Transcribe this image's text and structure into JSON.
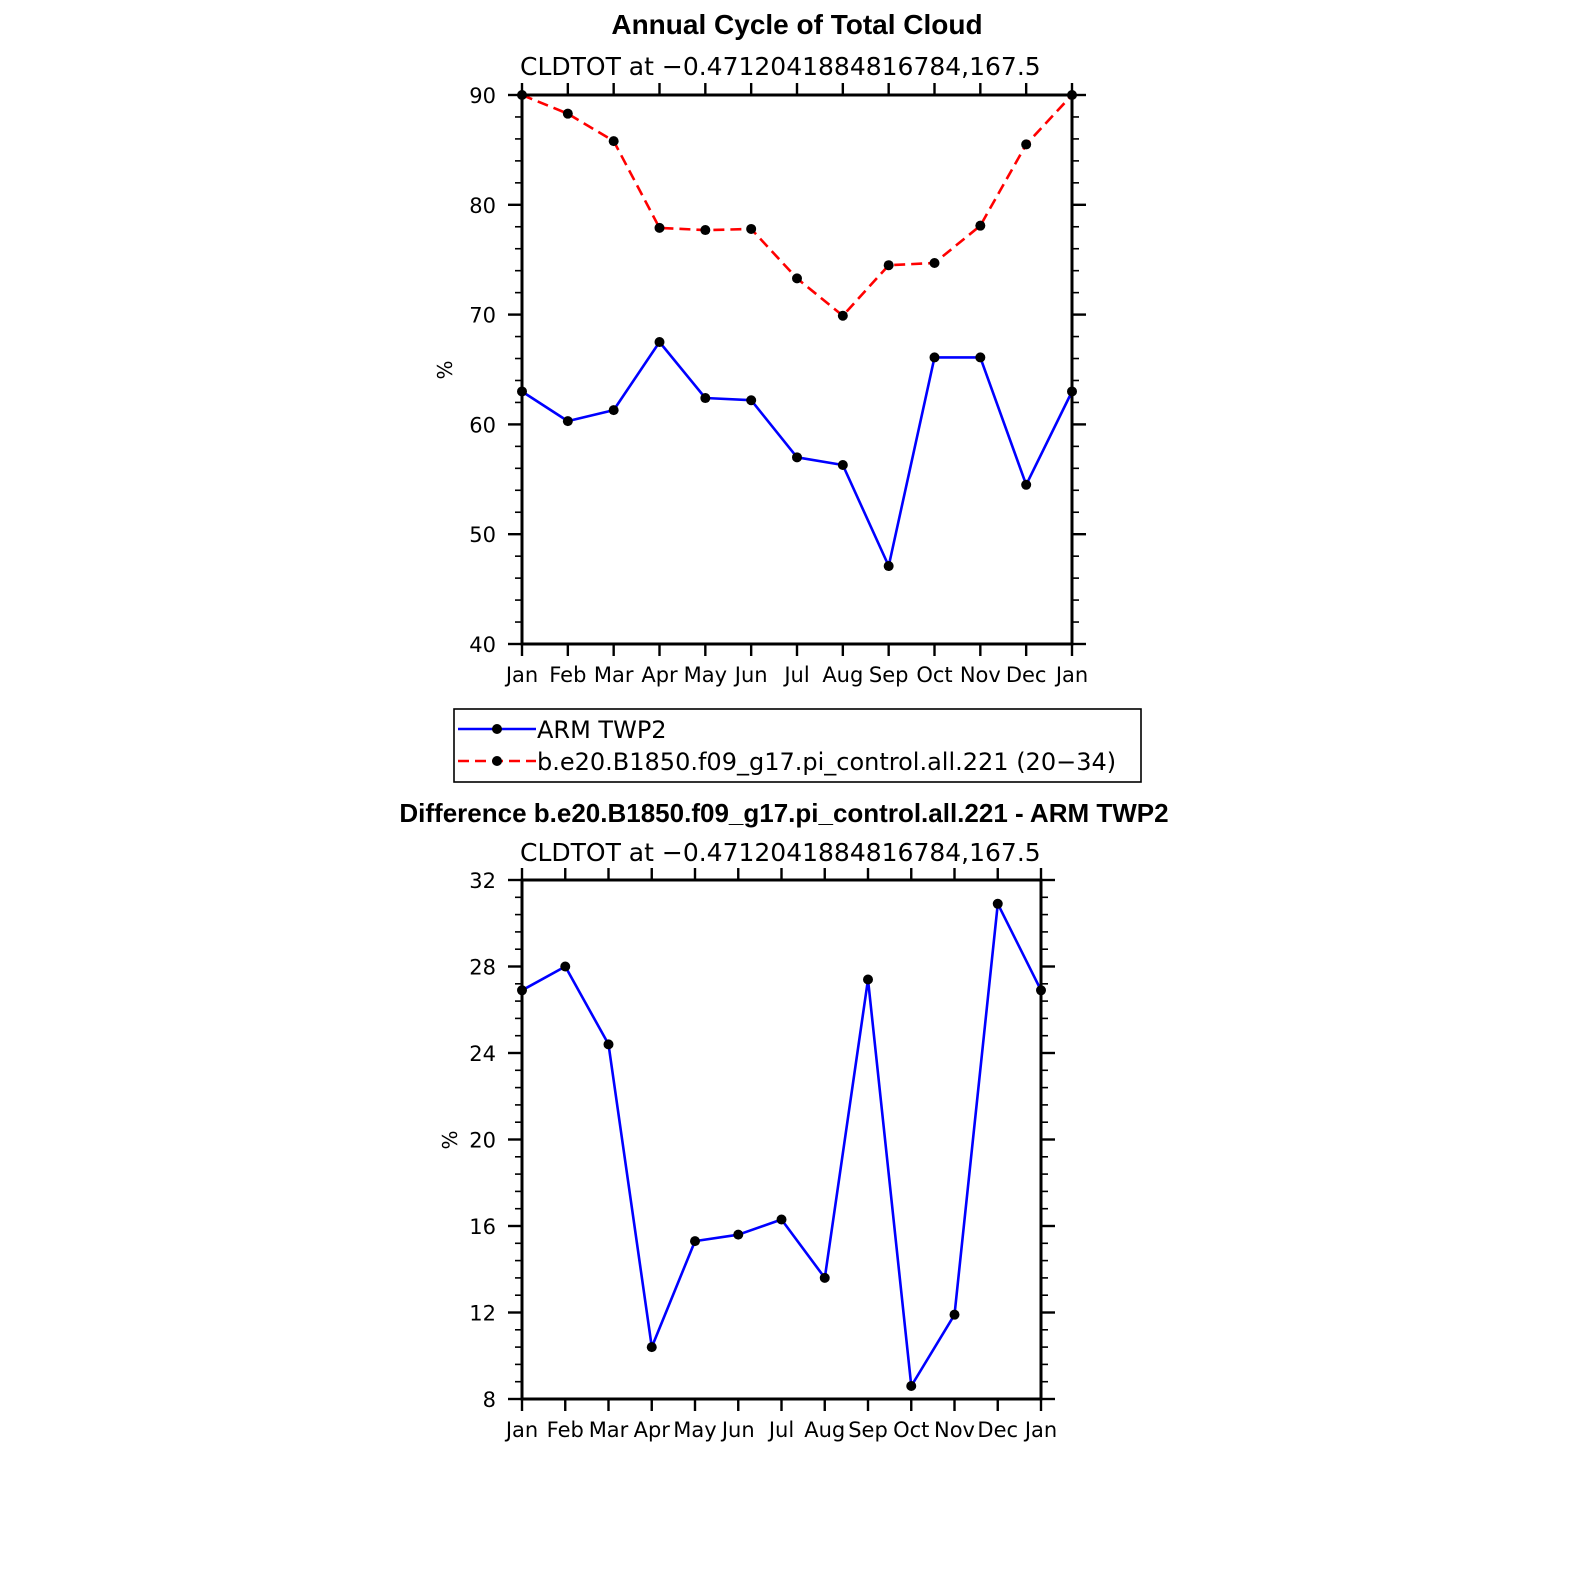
{
  "chart_data": [
    {
      "type": "line",
      "title": "Annual Cycle of Total Cloud",
      "subtitle": "CLDTOT at −0.4712041884816784,167.5",
      "xlabel": "",
      "ylabel": "%",
      "categories": [
        "Jan",
        "Feb",
        "Mar",
        "Apr",
        "May",
        "Jun",
        "Jul",
        "Aug",
        "Sep",
        "Oct",
        "Nov",
        "Dec",
        "Jan"
      ],
      "ylim": [
        40,
        90
      ],
      "yticks": [
        "40",
        "50",
        "60",
        "70",
        "80",
        "90"
      ],
      "grid": false,
      "legend_position": "below",
      "series": [
        {
          "name": "ARM TWP2",
          "color": "#0000ff",
          "dash": "solid",
          "values": [
            63.0,
            60.3,
            61.3,
            67.5,
            62.4,
            62.2,
            57.0,
            56.3,
            47.1,
            66.1,
            66.1,
            54.5,
            63.0
          ]
        },
        {
          "name": "b.e20.B1850.f09_g17.pi_control.all.221 (20−34)",
          "color": "#ff0000",
          "dash": "dashed",
          "values": [
            90.0,
            88.3,
            85.8,
            77.9,
            77.7,
            77.8,
            73.3,
            69.9,
            74.5,
            74.7,
            78.1,
            85.5,
            90.0
          ]
        }
      ]
    },
    {
      "type": "line",
      "title": "Difference b.e20.B1850.f09_g17.pi_control.all.221 - ARM TWP2",
      "subtitle": "CLDTOT at −0.4712041884816784,167.5",
      "xlabel": "",
      "ylabel": "%",
      "categories": [
        "Jan",
        "Feb",
        "Mar",
        "Apr",
        "May",
        "Jun",
        "Jul",
        "Aug",
        "Sep",
        "Oct",
        "Nov",
        "Dec",
        "Jan"
      ],
      "ylim": [
        8,
        32
      ],
      "yticks": [
        "8",
        "12",
        "16",
        "20",
        "24",
        "28",
        "32"
      ],
      "grid": false,
      "series": [
        {
          "color": "#0000ff",
          "dash": "solid",
          "values": [
            26.9,
            28.0,
            24.4,
            10.4,
            15.3,
            15.6,
            16.3,
            13.6,
            27.4,
            8.6,
            11.9,
            30.9,
            26.9
          ]
        }
      ]
    }
  ]
}
